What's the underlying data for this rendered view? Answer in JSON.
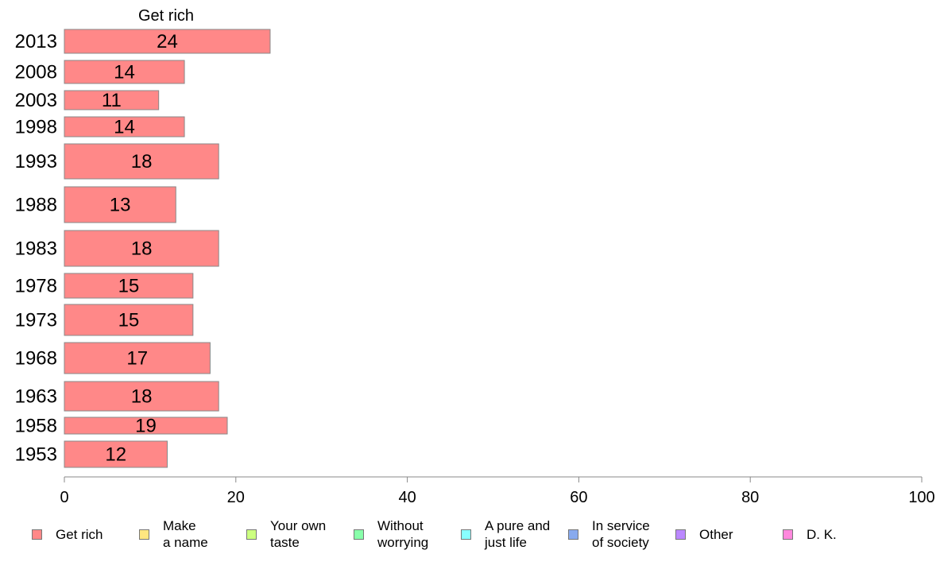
{
  "chart_data": {
    "type": "bar",
    "orientation": "horizontal",
    "stacked": true,
    "title": "Get rich",
    "xlabel": "",
    "ylabel": "",
    "xlim": [
      0,
      100
    ],
    "x_ticks": [
      "0",
      "20",
      "40",
      "60",
      "80",
      "100"
    ],
    "categories": [
      "2013",
      "2008",
      "2003",
      "1998",
      "1993",
      "1988",
      "1983",
      "1978",
      "1973",
      "1968",
      "1963",
      "1958",
      "1953"
    ],
    "series": [
      {
        "name": "Get rich",
        "color": "#ff8888",
        "values": [
          24,
          14,
          11,
          14,
          18,
          13,
          18,
          15,
          15,
          17,
          18,
          19,
          12
        ]
      }
    ],
    "data_labels": [
      "24",
      "14",
      "11",
      "14",
      "18",
      "13",
      "18",
      "15",
      "15",
      "17",
      "18",
      "19",
      "12"
    ],
    "legend_position": "bottom",
    "grid": false
  },
  "legend": [
    {
      "label": "Get rich",
      "color": "#ff8888"
    },
    {
      "label": "Make\na name",
      "color": "#ffe680"
    },
    {
      "label": "Your own\ntaste",
      "color": "#ccff80"
    },
    {
      "label": "Without\nworrying",
      "color": "#88ffaa"
    },
    {
      "label": "A pure and\njust life",
      "color": "#88ffff"
    },
    {
      "label": "In service\nof society",
      "color": "#88aaee"
    },
    {
      "label": "Other",
      "color": "#bb88ff"
    },
    {
      "label": "D. K.",
      "color": "#ff88dd"
    }
  ]
}
